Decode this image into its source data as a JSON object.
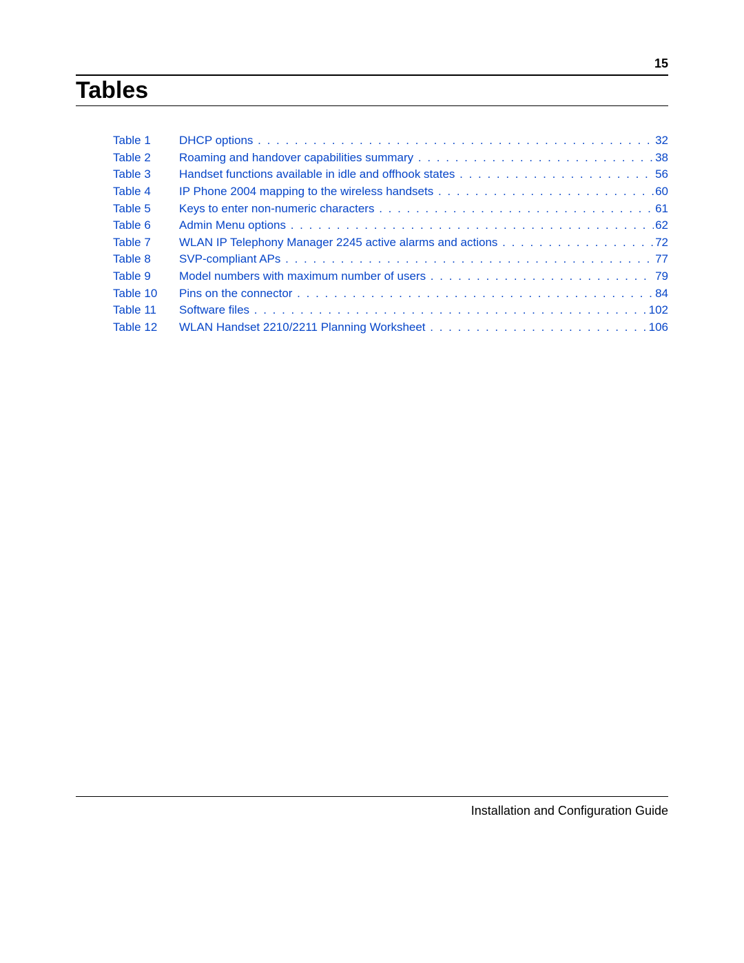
{
  "page_number": "15",
  "heading": "Tables",
  "footer": "Installation and Configuration Guide",
  "link_color": "#0645c8",
  "text_color": "#000000",
  "background_color": "#ffffff",
  "heading_fontsize": 34,
  "body_fontsize": 17,
  "footer_fontsize": 18,
  "toc": [
    {
      "label": "Table 1",
      "title": "DHCP options",
      "page": "32"
    },
    {
      "label": "Table 2",
      "title": "Roaming and handover capabilities summary",
      "page": "38"
    },
    {
      "label": "Table 3",
      "title": "Handset functions available in idle and offhook states",
      "page": "56"
    },
    {
      "label": "Table 4",
      "title": "IP Phone 2004 mapping to the wireless handsets",
      "page": "60"
    },
    {
      "label": "Table 5",
      "title": "Keys to enter non-numeric characters",
      "page": "61"
    },
    {
      "label": "Table 6",
      "title": "Admin Menu options",
      "page": "62"
    },
    {
      "label": "Table 7",
      "title": "WLAN IP Telephony Manager 2245 active alarms and actions",
      "page": "72"
    },
    {
      "label": "Table 8",
      "title": "SVP-compliant APs",
      "page": "77"
    },
    {
      "label": "Table 9",
      "title": "Model numbers with maximum number of users",
      "page": "79"
    },
    {
      "label": "Table 10",
      "title": "Pins on the connector",
      "page": "84"
    },
    {
      "label": "Table 11",
      "title": "Software files",
      "page": "102"
    },
    {
      "label": "Table 12",
      "title": "WLAN Handset 2210/2211 Planning Worksheet",
      "page": "106"
    }
  ]
}
